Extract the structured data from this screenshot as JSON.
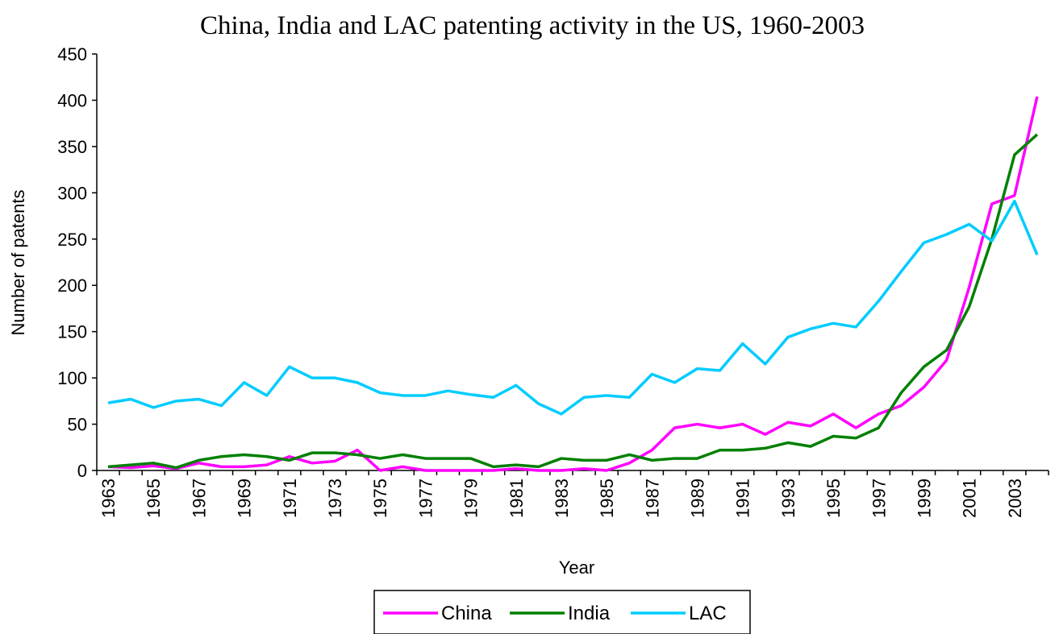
{
  "chart_data": {
    "type": "line",
    "title": "China, India and LAC patenting activity in the US, 1960-2003",
    "x_label": "Year",
    "y_label": "Number of patents",
    "categories": [
      "1963",
      null,
      "1965",
      null,
      "1967",
      null,
      "1969",
      null,
      "1971",
      null,
      "1973",
      null,
      "1975",
      null,
      "1977",
      null,
      "1979",
      null,
      "1981",
      null,
      "1983",
      null,
      "1985",
      null,
      "1987",
      null,
      "1989",
      null,
      "1991",
      null,
      "1993",
      null,
      "1995",
      null,
      "1997",
      null,
      "1999",
      null,
      "2001",
      null,
      "2003",
      null
    ],
    "series": [
      {
        "name": "China",
        "color": "#ff00ff",
        "values": [
          4,
          3,
          5,
          2,
          8,
          4,
          4,
          6,
          15,
          8,
          10,
          22,
          0,
          4,
          0,
          0,
          0,
          0,
          2,
          0,
          0,
          2,
          0,
          8,
          22,
          46,
          50,
          46,
          50,
          39,
          52,
          48,
          61,
          46,
          61,
          70,
          90,
          119,
          198,
          288,
          297,
          404
        ]
      },
      {
        "name": "India",
        "color": "#008000",
        "values": [
          4,
          6,
          8,
          3,
          11,
          15,
          17,
          15,
          11,
          19,
          19,
          17,
          13,
          17,
          13,
          13,
          13,
          4,
          6,
          4,
          13,
          11,
          11,
          17,
          11,
          13,
          13,
          22,
          22,
          24,
          30,
          26,
          37,
          35,
          46,
          84,
          112,
          130,
          177,
          250,
          341,
          363
        ]
      },
      {
        "name": "LAC",
        "color": "#00ccff",
        "values": [
          73,
          77,
          68,
          75,
          77,
          70,
          95,
          81,
          112,
          100,
          100,
          95,
          84,
          81,
          81,
          86,
          82,
          79,
          92,
          72,
          61,
          79,
          81,
          79,
          104,
          95,
          110,
          108,
          137,
          115,
          144,
          153,
          159,
          155,
          183,
          215,
          246,
          255,
          266,
          248,
          291,
          233
        ]
      }
    ],
    "ylim": [
      0,
      450
    ],
    "yticks": [
      0,
      50,
      100,
      150,
      200,
      250,
      300,
      350,
      400,
      450
    ],
    "grid": false,
    "legend": "bottom"
  }
}
